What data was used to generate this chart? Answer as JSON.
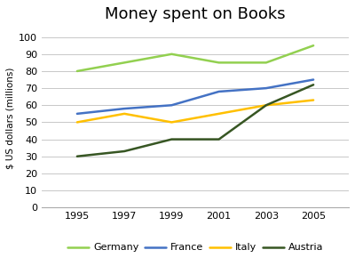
{
  "title": "Money spent on Books",
  "ylabel": "$ US dollars (millions)",
  "years": [
    1995,
    1997,
    1999,
    2001,
    2003,
    2005
  ],
  "series": {
    "Germany": {
      "values": [
        80,
        85,
        90,
        85,
        85,
        95
      ],
      "color": "#92d050",
      "linewidth": 1.8
    },
    "France": {
      "values": [
        55,
        58,
        60,
        68,
        70,
        75
      ],
      "color": "#4472c4",
      "linewidth": 1.8
    },
    "Italy": {
      "values": [
        50,
        55,
        50,
        55,
        60,
        63
      ],
      "color": "#ffc000",
      "linewidth": 1.8
    },
    "Austria": {
      "values": [
        30,
        33,
        40,
        40,
        60,
        72
      ],
      "color": "#375623",
      "linewidth": 1.8
    }
  },
  "ylim": [
    0,
    105
  ],
  "yticks": [
    0,
    10,
    20,
    30,
    40,
    50,
    60,
    70,
    80,
    90,
    100
  ],
  "xticks": [
    1995,
    1997,
    1999,
    2001,
    2003,
    2005
  ],
  "xlim": [
    1993.5,
    2006.5
  ],
  "legend_order": [
    "Germany",
    "France",
    "Italy",
    "Austria"
  ],
  "background_color": "#ffffff",
  "grid_color": "#c8c8c8",
  "title_fontsize": 13,
  "label_fontsize": 7.5,
  "tick_fontsize": 8,
  "legend_fontsize": 8
}
